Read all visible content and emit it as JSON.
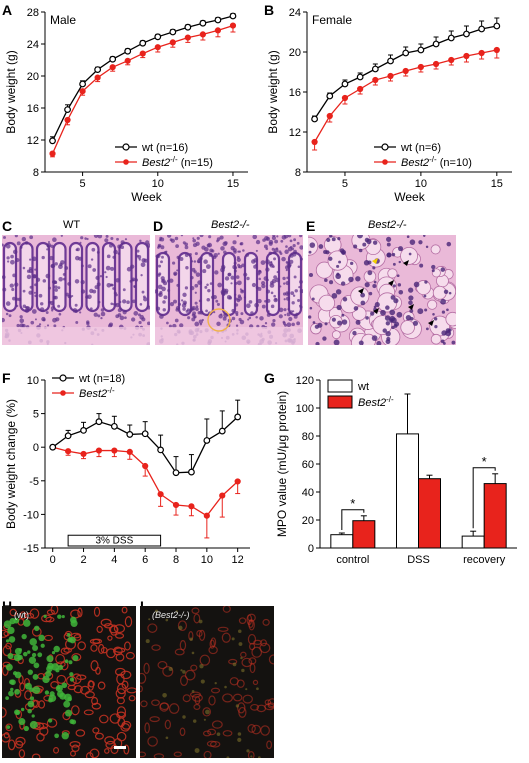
{
  "panels": {
    "A": "A",
    "B": "B",
    "C": "C",
    "D": "D",
    "E": "E",
    "F": "F",
    "G": "G",
    "H": "H",
    "I": "I"
  },
  "histology": {
    "C_title": "WT",
    "D_title": "Best2-/-",
    "E_title": "Best2-/-"
  },
  "immuno": {
    "H_label": "(wt)",
    "I_label": "(Best2-/-)"
  },
  "colors": {
    "wt": "#000000",
    "best2": "#e8231c",
    "he_pink": "#e6a8cf",
    "he_purple": "#6e3a96",
    "fluor_red": "#c23222",
    "fluor_green": "#3fb53a"
  },
  "chart_data": [
    {
      "id": "A",
      "type": "line",
      "annotation": "Male",
      "xlabel": "Week",
      "ylabel": "Body weight (g)",
      "xlim": [
        2.5,
        16
      ],
      "ylim": [
        8,
        28
      ],
      "xticks": [
        5,
        10,
        15
      ],
      "yticks": [
        8,
        12,
        16,
        20,
        24,
        28
      ],
      "legend": "bottom-right",
      "x": [
        3,
        4,
        5,
        6,
        7,
        8,
        9,
        10,
        11,
        12,
        13,
        14,
        15
      ],
      "series": [
        {
          "name": "wt (n=16)",
          "color": "#000000",
          "marker": "open-circle",
          "values": [
            11.9,
            15.8,
            19.0,
            20.8,
            22.1,
            23.1,
            24.1,
            24.9,
            25.5,
            26.1,
            26.6,
            27.0,
            27.5
          ],
          "errors": [
            0.5,
            0.6,
            0.4,
            0.3,
            0.3,
            0.3,
            0.3,
            0.3,
            0.3,
            0.3,
            0.3,
            0.3,
            0.3
          ]
        },
        {
          "name": "Best2-/- (n=15)",
          "color": "#e8231c",
          "marker": "filled-circle",
          "values": [
            10.3,
            14.5,
            18.1,
            19.8,
            21.1,
            21.9,
            22.8,
            23.6,
            24.2,
            24.8,
            25.2,
            25.7,
            26.3
          ],
          "errors": [
            0.4,
            0.6,
            0.5,
            0.5,
            0.5,
            0.5,
            0.5,
            0.6,
            0.6,
            0.6,
            0.7,
            0.8,
            0.8
          ]
        }
      ]
    },
    {
      "id": "B",
      "type": "line",
      "annotation": "Female",
      "xlabel": "Week",
      "ylabel": "Body weight (g)",
      "xlim": [
        2.5,
        16
      ],
      "ylim": [
        8,
        24
      ],
      "xticks": [
        5,
        10,
        15
      ],
      "yticks": [
        8,
        12,
        16,
        20,
        24
      ],
      "legend": "bottom-right",
      "x": [
        3,
        4,
        5,
        6,
        7,
        8,
        9,
        10,
        11,
        12,
        13,
        14,
        15
      ],
      "series": [
        {
          "name": "wt (n=6)",
          "color": "#000000",
          "marker": "open-circle",
          "values": [
            13.3,
            15.6,
            16.8,
            17.5,
            18.3,
            19.1,
            19.9,
            20.2,
            20.8,
            21.4,
            21.8,
            22.3,
            22.6
          ],
          "errors": [
            0.3,
            0.3,
            0.4,
            0.4,
            0.5,
            0.6,
            0.6,
            0.6,
            0.7,
            0.7,
            0.8,
            0.8,
            0.8
          ]
        },
        {
          "name": "Best2-/- (n=10)",
          "color": "#e8231c",
          "marker": "filled-circle",
          "values": [
            11.0,
            13.6,
            15.4,
            16.3,
            17.2,
            17.6,
            18.1,
            18.5,
            18.8,
            19.2,
            19.6,
            19.9,
            20.2
          ],
          "errors": [
            0.8,
            0.6,
            0.6,
            0.5,
            0.5,
            0.5,
            0.5,
            0.5,
            0.5,
            0.5,
            0.6,
            0.6,
            0.8
          ]
        }
      ]
    },
    {
      "id": "F",
      "type": "line",
      "xlabel": "",
      "ylabel": "Body weight change (%)",
      "xlim": [
        -0.5,
        12.8
      ],
      "ylim": [
        -15,
        10
      ],
      "xticks": [
        0,
        2,
        4,
        6,
        8,
        10,
        12
      ],
      "yticks": [
        -15,
        -10,
        -5,
        0,
        5,
        10
      ],
      "legend": "top-left",
      "annotation_box": "3% DSS",
      "annotation_box_range": [
        1,
        7
      ],
      "x": [
        0,
        1,
        2,
        3,
        4,
        5,
        6,
        7,
        8,
        9,
        10,
        11,
        12
      ],
      "series": [
        {
          "name": "wt (n=18)",
          "color": "#000000",
          "marker": "open-circle",
          "values": [
            0,
            1.7,
            2.5,
            3.8,
            3.1,
            1.9,
            2.0,
            -0.4,
            -3.8,
            -3.7,
            1.0,
            2.4,
            4.5
          ],
          "errors": [
            0.3,
            0.8,
            1.2,
            1.2,
            1.5,
            1.4,
            1.8,
            2.2,
            2.4,
            2.6,
            3.2,
            3.0,
            2.5
          ]
        },
        {
          "name": "Best2-/-",
          "color": "#e8231c",
          "marker": "filled-circle",
          "values": [
            0,
            -0.6,
            -1.0,
            -0.5,
            -0.5,
            -0.7,
            -2.8,
            -7.0,
            -8.6,
            -8.8,
            -10.2,
            -7.2,
            -5.1
          ],
          "errors": [
            0.3,
            0.6,
            0.7,
            0.9,
            0.9,
            1.1,
            1.5,
            1.8,
            1.5,
            1.4,
            3.3,
            3.2,
            1.8
          ]
        }
      ]
    },
    {
      "id": "G",
      "type": "bar",
      "ylabel": "MPO value (mU/μg protein)",
      "ylim": [
        0,
        120
      ],
      "yticks": [
        0,
        20,
        40,
        60,
        80,
        100,
        120
      ],
      "legend": "top-left",
      "categories": [
        "control",
        "DSS",
        "recovery"
      ],
      "significance": [
        true,
        false,
        true
      ],
      "significance_mark": "*",
      "series": [
        {
          "name": "wt",
          "color": "#ffffff",
          "values": [
            9.5,
            81.5,
            8.5
          ],
          "errors": [
            1.2,
            28.5,
            3.5
          ]
        },
        {
          "name": "Best2-/-",
          "color": "#e8231c",
          "values": [
            19.5,
            49.5,
            46.0
          ],
          "errors": [
            3.5,
            2.5,
            7.0
          ]
        }
      ]
    }
  ]
}
